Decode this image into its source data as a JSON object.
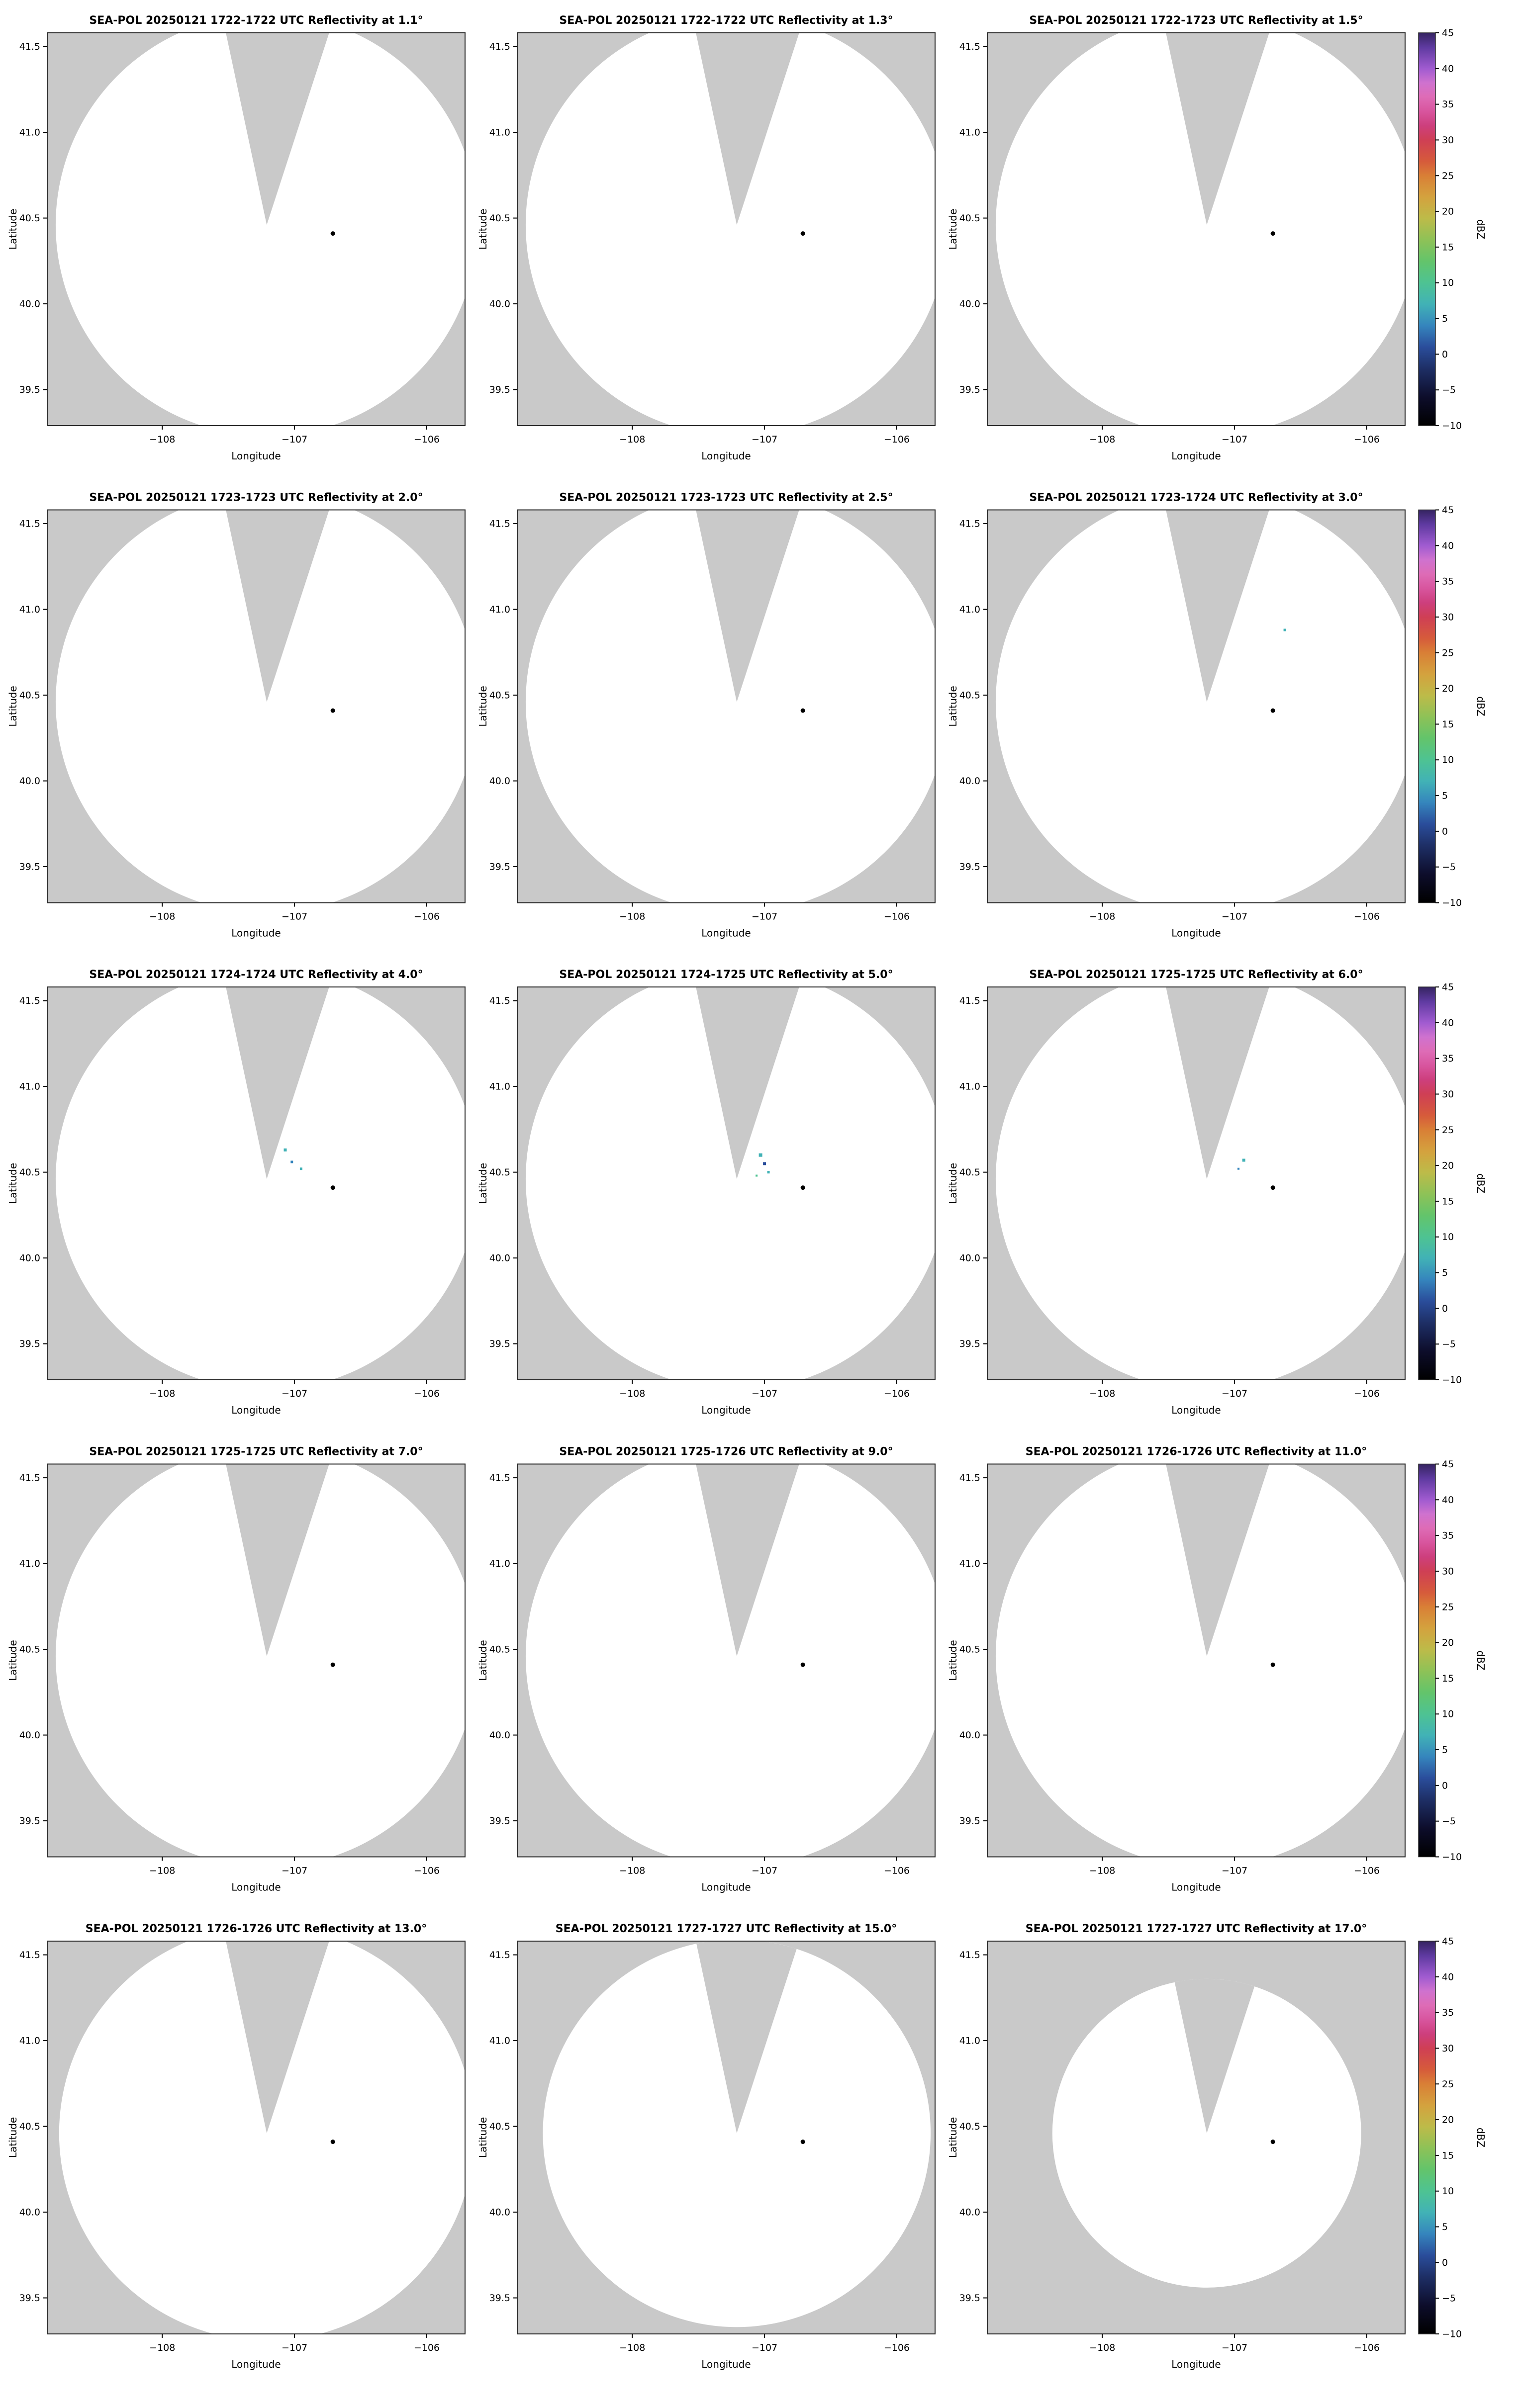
{
  "map": {
    "xlabel": "Longitude",
    "ylabel": "Latitude",
    "lon_range": [
      -108.87,
      -105.71
    ],
    "lat_range": [
      39.29,
      41.58
    ],
    "x_ticks": [
      -108,
      -107,
      -106
    ],
    "x_tick_labels": [
      "−108",
      "−107",
      "−106"
    ],
    "y_ticks": [
      41.5,
      41.0,
      40.5,
      40.0,
      39.5
    ],
    "y_tick_labels": [
      "41.5",
      "41.0",
      "40.5",
      "40.0",
      "39.5"
    ],
    "land_color": "#c9c9c9",
    "coverage_color": "#ffffff",
    "border_color": "#2b2b2b"
  },
  "radar": {
    "center_lon": -107.21,
    "center_lat": 40.46,
    "blocked_sector": {
      "start_az": -12,
      "end_az": 18
    },
    "site_marker": {
      "lon": -106.71,
      "lat": 40.41,
      "color": "#000000"
    }
  },
  "colorbar": {
    "label": "dBZ",
    "min": -10,
    "max": 45,
    "ticks": [
      45,
      40,
      35,
      30,
      25,
      20,
      15,
      10,
      5,
      0,
      -5,
      -10
    ],
    "tick_labels": [
      "45",
      "40",
      "35",
      "30",
      "25",
      "20",
      "15",
      "10",
      "5",
      "0",
      "−5",
      "−10"
    ],
    "stops": [
      {
        "v": -10,
        "c": "#000000"
      },
      {
        "v": -6,
        "c": "#0d0d2b"
      },
      {
        "v": -2,
        "c": "#1e2f66"
      },
      {
        "v": 1,
        "c": "#2a4d9b"
      },
      {
        "v": 4,
        "c": "#3585bd"
      },
      {
        "v": 7,
        "c": "#41b2b6"
      },
      {
        "v": 10,
        "c": "#4ec392"
      },
      {
        "v": 13,
        "c": "#63c46b"
      },
      {
        "v": 16,
        "c": "#8ec257"
      },
      {
        "v": 19,
        "c": "#bdbb49"
      },
      {
        "v": 22,
        "c": "#d4a23e"
      },
      {
        "v": 25,
        "c": "#d97f36"
      },
      {
        "v": 27,
        "c": "#d65b3b"
      },
      {
        "v": 30,
        "c": "#cf3f55"
      },
      {
        "v": 32,
        "c": "#cd3f7d"
      },
      {
        "v": 34,
        "c": "#d8559e"
      },
      {
        "v": 36,
        "c": "#de6cb6"
      },
      {
        "v": 38,
        "c": "#cf72cf"
      },
      {
        "v": 40,
        "c": "#a05bd0"
      },
      {
        "v": 43,
        "c": "#5e3aa0"
      },
      {
        "v": 45,
        "c": "#352461"
      }
    ]
  },
  "panels": [
    {
      "title": "SEA-POL 20250121 1722-1722 UTC Reflectivity at 1.1°",
      "time_utc": "1722-1722",
      "elevation_deg": 1.1,
      "radius_deg": 1.23,
      "echoes": []
    },
    {
      "title": "SEA-POL 20250121 1722-1722 UTC Reflectivity at 1.3°",
      "time_utc": "1722-1722",
      "elevation_deg": 1.3,
      "radius_deg": 1.23,
      "echoes": []
    },
    {
      "title": "SEA-POL 20250121 1722-1723 UTC Reflectivity at 1.5°",
      "time_utc": "1722-1723",
      "elevation_deg": 1.5,
      "radius_deg": 1.23,
      "echoes": []
    },
    {
      "title": "SEA-POL 20250121 1723-1723 UTC Reflectivity at 2.0°",
      "time_utc": "1723-1723",
      "elevation_deg": 2.0,
      "radius_deg": 1.23,
      "echoes": []
    },
    {
      "title": "SEA-POL 20250121 1723-1723 UTC Reflectivity at 2.5°",
      "time_utc": "1723-1723",
      "elevation_deg": 2.5,
      "radius_deg": 1.23,
      "echoes": []
    },
    {
      "title": "SEA-POL 20250121 1723-1724 UTC Reflectivity at 3.0°",
      "time_utc": "1723-1724",
      "elevation_deg": 3.0,
      "radius_deg": 1.23,
      "echoes": [
        {
          "lon": -106.62,
          "lat": 40.88,
          "color": "#41b2b6",
          "size": 5
        }
      ]
    },
    {
      "title": "SEA-POL 20250121 1724-1724 UTC Reflectivity at 4.0°",
      "time_utc": "1724-1724",
      "elevation_deg": 4.0,
      "radius_deg": 1.23,
      "echoes": [
        {
          "lon": -107.07,
          "lat": 40.63,
          "color": "#41b2b6",
          "size": 6
        },
        {
          "lon": -107.02,
          "lat": 40.56,
          "color": "#3585bd",
          "size": 5
        },
        {
          "lon": -106.95,
          "lat": 40.52,
          "color": "#41b2b6",
          "size": 5
        }
      ]
    },
    {
      "title": "SEA-POL 20250121 1724-1725 UTC Reflectivity at 5.0°",
      "time_utc": "1724-1725",
      "elevation_deg": 5.0,
      "radius_deg": 1.23,
      "echoes": [
        {
          "lon": -107.03,
          "lat": 40.6,
          "color": "#41b2b6",
          "size": 7
        },
        {
          "lon": -107.0,
          "lat": 40.55,
          "color": "#2a4d9b",
          "size": 6
        },
        {
          "lon": -106.97,
          "lat": 40.5,
          "color": "#41b2b6",
          "size": 5
        },
        {
          "lon": -107.06,
          "lat": 40.48,
          "color": "#4ec392",
          "size": 4
        }
      ]
    },
    {
      "title": "SEA-POL 20250121 1725-1725 UTC Reflectivity at 6.0°",
      "time_utc": "1725-1725",
      "elevation_deg": 6.0,
      "radius_deg": 1.23,
      "echoes": [
        {
          "lon": -106.93,
          "lat": 40.57,
          "color": "#41b2b6",
          "size": 6
        },
        {
          "lon": -106.97,
          "lat": 40.52,
          "color": "#3585bd",
          "size": 4
        }
      ]
    },
    {
      "title": "SEA-POL 20250121 1725-1725 UTC Reflectivity at 7.0°",
      "time_utc": "1725-1725",
      "elevation_deg": 7.0,
      "radius_deg": 1.23,
      "echoes": []
    },
    {
      "title": "SEA-POL 20250121 1725-1726 UTC Reflectivity at 9.0°",
      "time_utc": "1725-1726",
      "elevation_deg": 9.0,
      "radius_deg": 1.23,
      "echoes": []
    },
    {
      "title": "SEA-POL 20250121 1726-1726 UTC Reflectivity at 11.0°",
      "time_utc": "1726-1726",
      "elevation_deg": 11.0,
      "radius_deg": 1.23,
      "echoes": []
    },
    {
      "title": "SEA-POL 20250121 1726-1726 UTC Reflectivity at 13.0°",
      "time_utc": "1726-1726",
      "elevation_deg": 13.0,
      "radius_deg": 1.21,
      "echoes": []
    },
    {
      "title": "SEA-POL 20250121 1727-1727 UTC Reflectivity at 15.0°",
      "time_utc": "1727-1727",
      "elevation_deg": 15.0,
      "radius_deg": 1.13,
      "echoes": []
    },
    {
      "title": "SEA-POL 20250121 1727-1727 UTC Reflectivity at 17.0°",
      "time_utc": "1727-1727",
      "elevation_deg": 17.0,
      "radius_deg": 0.9,
      "echoes": []
    }
  ],
  "chart_data": {
    "type": "heatmap",
    "layout": "5x3 grid of radar PPI reflectivity maps, one shared vertical colorbar per row on the right",
    "xlabel": "Longitude",
    "ylabel": "Latitude",
    "xlim": [
      -108.87,
      -105.71
    ],
    "ylim": [
      39.29,
      41.58
    ],
    "x_ticks": [
      -108,
      -107,
      -106
    ],
    "y_ticks": [
      41.5,
      41.0,
      40.5,
      40.0,
      39.5
    ],
    "colorbar": {
      "label": "dBZ",
      "range": [
        -10,
        45
      ],
      "ticks": [
        45,
        40,
        35,
        30,
        25,
        20,
        15,
        10,
        5,
        0,
        -5,
        -10
      ]
    },
    "panels": [
      {
        "radar": "SEA-POL",
        "date": "20250121",
        "time_utc": "1722-1722",
        "elevation_deg": 1.1
      },
      {
        "radar": "SEA-POL",
        "date": "20250121",
        "time_utc": "1722-1722",
        "elevation_deg": 1.3
      },
      {
        "radar": "SEA-POL",
        "date": "20250121",
        "time_utc": "1722-1723",
        "elevation_deg": 1.5
      },
      {
        "radar": "SEA-POL",
        "date": "20250121",
        "time_utc": "1723-1723",
        "elevation_deg": 2.0
      },
      {
        "radar": "SEA-POL",
        "date": "20250121",
        "time_utc": "1723-1723",
        "elevation_deg": 2.5
      },
      {
        "radar": "SEA-POL",
        "date": "20250121",
        "time_utc": "1723-1724",
        "elevation_deg": 3.0
      },
      {
        "radar": "SEA-POL",
        "date": "20250121",
        "time_utc": "1724-1724",
        "elevation_deg": 4.0
      },
      {
        "radar": "SEA-POL",
        "date": "20250121",
        "time_utc": "1724-1725",
        "elevation_deg": 5.0
      },
      {
        "radar": "SEA-POL",
        "date": "20250121",
        "time_utc": "1725-1725",
        "elevation_deg": 6.0
      },
      {
        "radar": "SEA-POL",
        "date": "20250121",
        "time_utc": "1725-1725",
        "elevation_deg": 7.0
      },
      {
        "radar": "SEA-POL",
        "date": "20250121",
        "time_utc": "1725-1726",
        "elevation_deg": 9.0
      },
      {
        "radar": "SEA-POL",
        "date": "20250121",
        "time_utc": "1726-1726",
        "elevation_deg": 11.0
      },
      {
        "radar": "SEA-POL",
        "date": "20250121",
        "time_utc": "1726-1726",
        "elevation_deg": 13.0
      },
      {
        "radar": "SEA-POL",
        "date": "20250121",
        "time_utc": "1727-1727",
        "elevation_deg": 15.0
      },
      {
        "radar": "SEA-POL",
        "date": "20250121",
        "time_utc": "1727-1727",
        "elevation_deg": 17.0
      }
    ],
    "description": "Mostly clear scans: white circular radar coverage on gray land background, a gray blocked wedge sector toward the north, a black radar site marker near lon −106.7 lat 40.4, and only a few weak (≈0–10 dBZ) echo pixels near the center in the 3.0°–6.0° panels."
  }
}
